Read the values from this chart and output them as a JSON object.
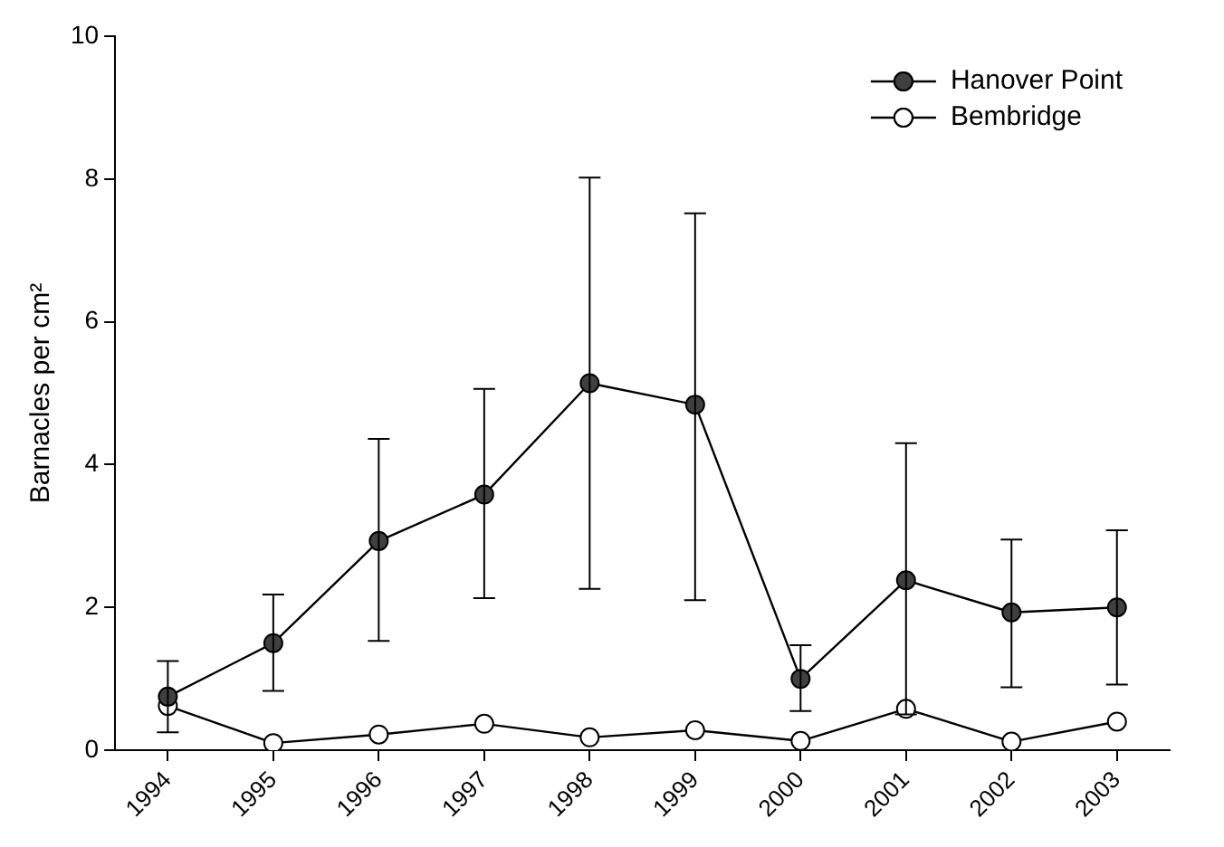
{
  "chart_data": {
    "type": "line",
    "ylabel": "Barnacles per cm²",
    "categories": [
      "1994",
      "1995",
      "1996",
      "1997",
      "1998",
      "1999",
      "2000",
      "2001",
      "2002",
      "2003"
    ],
    "series": [
      {
        "name": "Hanover Point",
        "color": "#404040",
        "values": [
          0.75,
          1.5,
          2.93,
          3.58,
          5.14,
          4.84,
          1.0,
          2.38,
          1.93,
          2.0
        ],
        "errors": [
          [
            0.25,
            1.25
          ],
          [
            0.83,
            2.18
          ],
          [
            1.53,
            4.36
          ],
          [
            2.13,
            5.06
          ],
          [
            2.26,
            8.02
          ],
          [
            2.1,
            7.52
          ],
          [
            0.55,
            1.47
          ],
          [
            0.5,
            4.3
          ],
          [
            0.88,
            2.95
          ],
          [
            0.92,
            3.08
          ]
        ]
      },
      {
        "name": "Bembridge",
        "color": "#ffffff",
        "values": [
          0.62,
          0.1,
          0.22,
          0.37,
          0.18,
          0.28,
          0.13,
          0.58,
          0.12,
          0.4
        ]
      }
    ],
    "ylim": [
      0,
      10
    ],
    "yticks": [
      0,
      2,
      4,
      6,
      8,
      10
    ],
    "grid": false,
    "legend": "top right",
    "marker": "circle",
    "line_style": "solid"
  }
}
